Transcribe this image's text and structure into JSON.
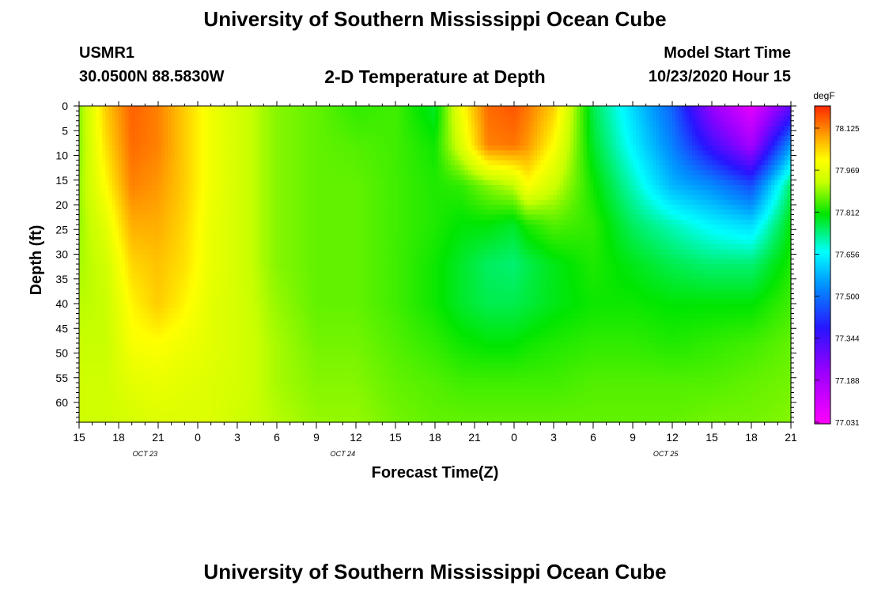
{
  "header": {
    "title": "University of Southern Mississippi Ocean Cube",
    "station_id": "USMR1",
    "coords": "30.0500N 88.5830W",
    "subtitle": "2-D Temperature at Depth",
    "model_start_label": "Model Start Time",
    "model_start_value": "10/23/2020 Hour 15"
  },
  "footer": {
    "title": "University of Southern Mississippi Ocean Cube"
  },
  "chart_data": {
    "type": "heatmap",
    "title": "2-D Temperature at Depth",
    "xlabel": "Forecast Time(Z)",
    "ylabel": "Depth (ft)",
    "x_start_hour": 15,
    "x_end_hour": 69,
    "x_tick_step": 3,
    "x_tick_labels": [
      "15",
      "18",
      "21",
      "0",
      "3",
      "6",
      "9",
      "12",
      "15",
      "18",
      "21",
      "0",
      "3",
      "6",
      "9",
      "12",
      "15",
      "18",
      "21"
    ],
    "date_labels": [
      {
        "text": "OCT 23",
        "hour": 20
      },
      {
        "text": "OCT 24",
        "hour": 35
      },
      {
        "text": "OCT 25",
        "hour": 59.5
      }
    ],
    "ylim": [
      0,
      64
    ],
    "y_ticks": [
      0,
      5,
      10,
      15,
      20,
      25,
      30,
      35,
      40,
      45,
      50,
      55,
      60
    ],
    "colorbar": {
      "unit": "degF",
      "min": 77.031,
      "max": 78.2,
      "tick_labels": [
        "78.125",
        "77.969",
        "77.812",
        "77.656",
        "77.500",
        "77.344",
        "77.188",
        "77.031"
      ]
    },
    "z_anchor_hours": [
      15,
      17,
      19,
      21,
      23,
      25,
      27,
      30,
      33,
      36,
      39,
      42,
      44,
      46,
      48,
      49,
      51,
      54,
      57,
      60,
      63,
      66,
      69
    ],
    "z_anchor_depths": [
      0,
      8,
      16,
      24,
      32,
      40,
      48,
      56,
      64
    ],
    "z_values_degF": [
      [
        77.88,
        77.88,
        77.89,
        77.89,
        77.9,
        77.91,
        77.92,
        77.93,
        77.93
      ],
      [
        78.05,
        78.03,
        78.0,
        77.96,
        77.93,
        77.92,
        77.92,
        77.93,
        77.93
      ],
      [
        78.15,
        78.14,
        78.12,
        78.08,
        78.04,
        78.01,
        77.99,
        77.96,
        77.94
      ],
      [
        78.12,
        78.12,
        78.1,
        78.08,
        78.06,
        78.05,
        78.0,
        77.97,
        77.95
      ],
      [
        78.05,
        78.05,
        78.05,
        78.04,
        78.03,
        78.01,
        77.98,
        77.96,
        77.95
      ],
      [
        77.98,
        77.98,
        77.98,
        77.97,
        77.97,
        77.96,
        77.96,
        77.95,
        77.95
      ],
      [
        77.94,
        77.94,
        77.94,
        77.94,
        77.94,
        77.94,
        77.94,
        77.94,
        77.93
      ],
      [
        77.88,
        77.88,
        77.88,
        77.88,
        77.88,
        77.89,
        77.9,
        77.9,
        77.91
      ],
      [
        77.86,
        77.86,
        77.86,
        77.86,
        77.86,
        77.86,
        77.87,
        77.88,
        77.89
      ],
      [
        77.83,
        77.85,
        77.86,
        77.86,
        77.86,
        77.86,
        77.87,
        77.88,
        77.89
      ],
      [
        77.84,
        77.84,
        77.84,
        77.84,
        77.84,
        77.84,
        77.85,
        77.86,
        77.87
      ],
      [
        77.78,
        77.81,
        77.82,
        77.82,
        77.81,
        77.81,
        77.83,
        77.85,
        77.86
      ],
      [
        77.99,
        77.95,
        77.83,
        77.8,
        77.78,
        77.78,
        77.81,
        77.84,
        77.86
      ],
      [
        78.14,
        78.12,
        77.88,
        77.8,
        77.75,
        77.76,
        77.8,
        77.84,
        77.86
      ],
      [
        78.16,
        78.13,
        77.92,
        77.78,
        77.74,
        77.76,
        77.8,
        77.84,
        77.86
      ],
      [
        78.13,
        78.1,
        78.0,
        77.82,
        77.76,
        77.77,
        77.81,
        77.84,
        77.86
      ],
      [
        78.05,
        78.0,
        77.93,
        77.85,
        77.79,
        77.79,
        77.82,
        77.84,
        77.86
      ],
      [
        77.76,
        77.78,
        77.81,
        77.83,
        77.82,
        77.81,
        77.83,
        77.85,
        77.86
      ],
      [
        77.62,
        77.65,
        77.7,
        77.75,
        77.79,
        77.81,
        77.83,
        77.85,
        77.86
      ],
      [
        77.48,
        77.52,
        77.58,
        77.7,
        77.76,
        77.8,
        77.82,
        77.85,
        77.86
      ],
      [
        77.22,
        77.35,
        77.53,
        77.65,
        77.74,
        77.8,
        77.83,
        77.85,
        77.87
      ],
      [
        77.08,
        77.2,
        77.45,
        77.62,
        77.74,
        77.8,
        77.84,
        77.86,
        77.87
      ],
      [
        77.3,
        77.55,
        77.75,
        77.8,
        77.82,
        77.84,
        77.86,
        77.87,
        77.88
      ]
    ]
  }
}
